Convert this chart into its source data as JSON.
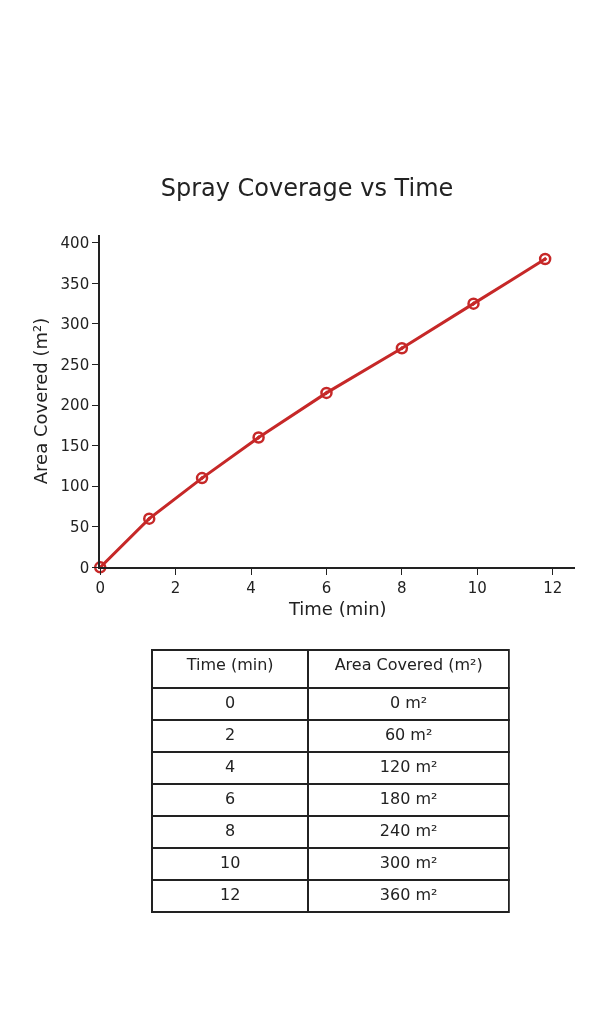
{
  "chart_data": {
    "type": "line",
    "title": "Spray Coverage vs Time",
    "xlabel": "Time (min)",
    "ylabel": "Area Covered (m²)",
    "x": [
      0,
      1.3,
      2.7,
      4.2,
      6,
      8,
      9.9,
      11.8
    ],
    "series": [
      {
        "color": "#c62828",
        "values": [
          0,
          60,
          110,
          160,
          215,
          270,
          325,
          380
        ]
      }
    ],
    "xlim": [
      0,
      12.6
    ],
    "xticks": [
      0,
      2,
      4,
      6,
      8,
      10,
      12
    ],
    "ylim": [
      0,
      410
    ],
    "yticks": [
      0,
      50,
      100,
      150,
      200,
      250,
      300,
      350,
      400
    ],
    "marker": "circle",
    "line_style": "solid",
    "annotations": [
      "Time (min)",
      "Area Covered (m²)",
      "0",
      "0 m²",
      "2",
      "60 m²",
      "4",
      "120 m²",
      "6",
      "180 m²",
      "8",
      "240 m²",
      "10",
      "300 m²",
      "12",
      "360 m²"
    ]
  }
}
